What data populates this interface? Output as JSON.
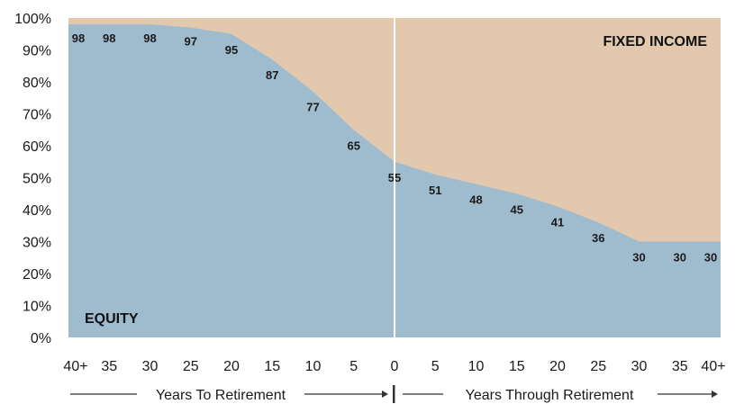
{
  "chart_data": {
    "type": "area",
    "x": [
      "40+",
      "35",
      "30",
      "25",
      "20",
      "15",
      "10",
      "5",
      "0",
      "5",
      "10",
      "15",
      "20",
      "25",
      "30",
      "35",
      "40+"
    ],
    "series": [
      {
        "name": "EQUITY",
        "values": [
          98,
          98,
          98,
          97,
          95,
          87,
          77,
          65,
          55,
          51,
          48,
          45,
          41,
          36,
          30,
          30,
          30
        ]
      },
      {
        "name": "FIXED INCOME",
        "values": [
          2,
          2,
          2,
          3,
          5,
          13,
          23,
          35,
          45,
          49,
          52,
          55,
          59,
          64,
          70,
          70,
          70
        ]
      }
    ],
    "data_labels": [
      "98",
      "98",
      "98",
      "97",
      "95",
      "87",
      "77",
      "65",
      "55",
      "51",
      "48",
      "45",
      "41",
      "36",
      "30",
      "30",
      "30"
    ],
    "y_ticks": [
      "0%",
      "10%",
      "20%",
      "30%",
      "40%",
      "50%",
      "60%",
      "70%",
      "80%",
      "90%",
      "100%"
    ],
    "ylim": [
      0,
      100
    ],
    "grid": false,
    "colors": {
      "equity": "#9fbccf",
      "fixed_income": "#e2c9ae",
      "divider": "#ffffff",
      "text": "#1a1a1a"
    },
    "annotations": {
      "equity_label": "EQUITY",
      "fixed_income_label": "FIXED INCOME",
      "left_axis_caption": "Years To Retirement",
      "right_axis_caption": "Years Through Retirement"
    }
  }
}
